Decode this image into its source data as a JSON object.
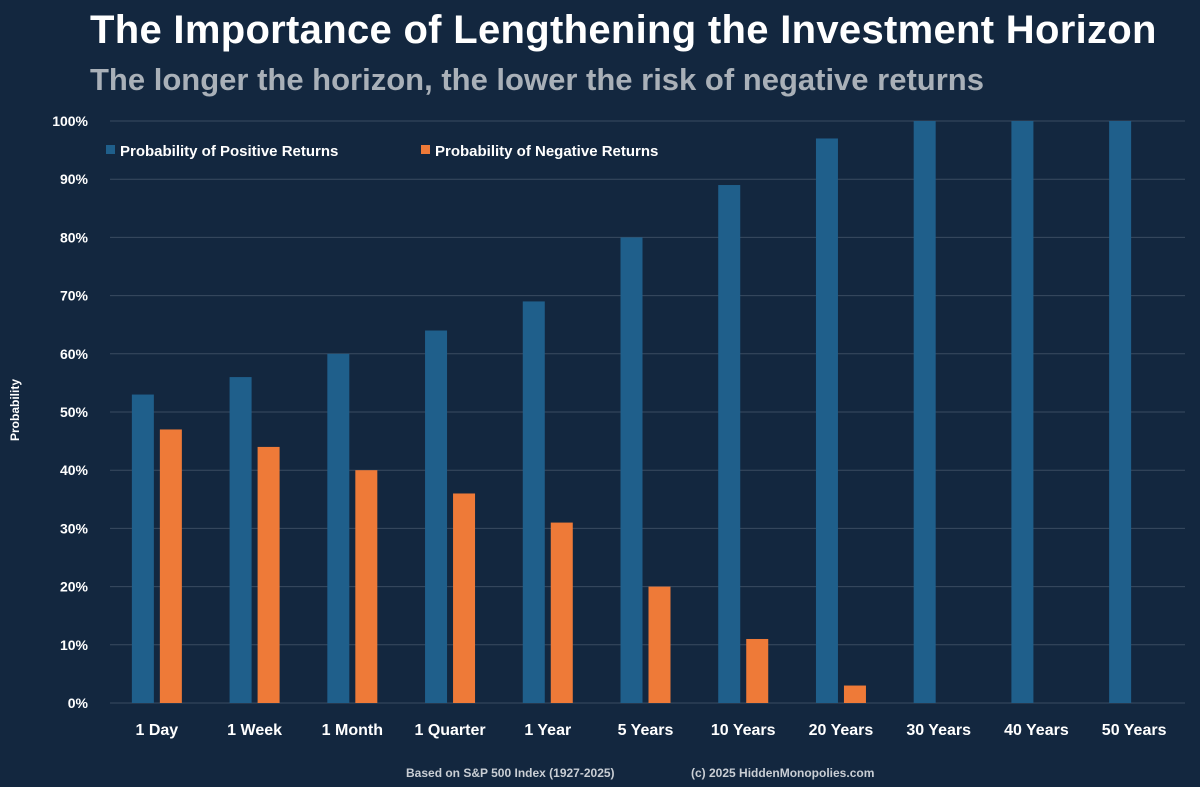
{
  "header": {
    "title": "The Importance of Lengthening the Investment Horizon",
    "subtitle": "The longer the horizon, the lower the risk of negative returns"
  },
  "footer": {
    "source": "Based on S&P 500 Index (1927-2025)",
    "copyright": "(c) 2025 HiddenMonopolies.com"
  },
  "colors": {
    "background": "#13273f",
    "positive": "#1f5f8b",
    "negative": "#ee7a38",
    "grid": "#3a4b61"
  },
  "chart_data": {
    "type": "bar",
    "title": "The Importance of Lengthening the Investment Horizon",
    "subtitle": "The longer the horizon, the lower the risk of negative returns",
    "xlabel": "",
    "ylabel": "Probability",
    "ylim": [
      0,
      100
    ],
    "yticks": [
      0,
      10,
      20,
      30,
      40,
      50,
      60,
      70,
      80,
      90,
      100
    ],
    "ytick_labels": [
      "0%",
      "10%",
      "20%",
      "30%",
      "40%",
      "50%",
      "60%",
      "70%",
      "80%",
      "90%",
      "100%"
    ],
    "grid": true,
    "legend_position": "top-left",
    "categories": [
      "1 Day",
      "1 Week",
      "1 Month",
      "1 Quarter",
      "1 Year",
      "5 Years",
      "10 Years",
      "20 Years",
      "30 Years",
      "40 Years",
      "50 Years"
    ],
    "series": [
      {
        "name": "Probability of Positive Returns",
        "color": "#1f5f8b",
        "values": [
          53,
          56,
          60,
          64,
          69,
          80,
          89,
          97,
          100,
          100,
          100
        ]
      },
      {
        "name": "Probability of Negative Returns",
        "color": "#ee7a38",
        "values": [
          47,
          44,
          40,
          36,
          31,
          20,
          11,
          3,
          0,
          0,
          0
        ]
      }
    ]
  }
}
